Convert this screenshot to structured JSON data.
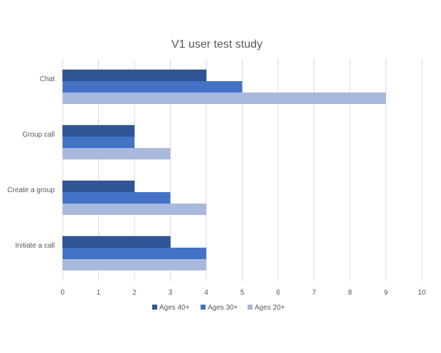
{
  "chart_data": {
    "type": "bar",
    "orientation": "horizontal",
    "title": "V1 user test study",
    "categories": [
      "Chat",
      "Group call",
      "Create a group",
      "Initiate a call"
    ],
    "series": [
      {
        "name": "Ages 40+",
        "color": "#2f5597",
        "values": [
          4,
          2,
          2,
          3
        ]
      },
      {
        "name": "Ages 30+",
        "color": "#4472c4",
        "values": [
          5,
          2,
          3,
          4
        ]
      },
      {
        "name": "Ages 20+",
        "color": "#a9b8dd",
        "values": [
          9,
          3,
          4,
          4
        ]
      }
    ],
    "xlim": [
      0,
      10
    ],
    "xticks": [
      "0",
      "1",
      "2",
      "3",
      "4",
      "5",
      "6",
      "7",
      "8",
      "9",
      "10"
    ],
    "grid": "vertical",
    "legend": "bottom"
  }
}
